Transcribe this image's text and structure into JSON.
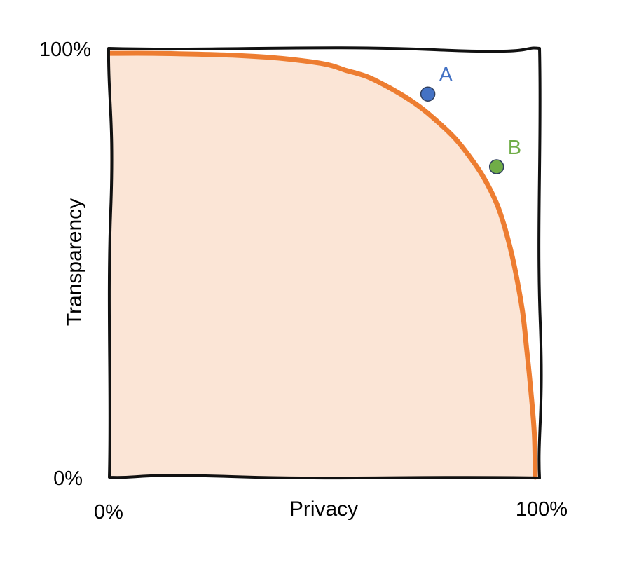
{
  "chart_data": {
    "type": "line",
    "title": "",
    "xlabel": "Privacy",
    "ylabel": "Transparency",
    "xlim": [
      0,
      100
    ],
    "ylim": [
      0,
      100
    ],
    "x_ticks": [
      "0%",
      "100%"
    ],
    "y_ticks": [
      "0%",
      "100%"
    ],
    "grid": false,
    "series": [
      {
        "x": [
          0,
          10,
          20,
          30,
          40,
          50,
          55,
          60,
          65,
          70,
          74,
          80,
          84,
          87,
          90,
          92,
          94,
          96,
          97,
          98,
          98.8,
          99
        ],
        "y": [
          99,
          99,
          98.8,
          98.5,
          97.8,
          96.5,
          95,
          93.5,
          91,
          88,
          85,
          79.5,
          74.5,
          70,
          64,
          58,
          50,
          39,
          30,
          20,
          10,
          0
        ],
        "color": "#ED7D31",
        "fill": "#FBE5D6"
      }
    ],
    "points": [
      {
        "label": "A",
        "x": 74,
        "y": 89.5,
        "color": "#4472C4"
      },
      {
        "label": "B",
        "x": 90,
        "y": 72.5,
        "color": "#70AD47"
      }
    ]
  }
}
